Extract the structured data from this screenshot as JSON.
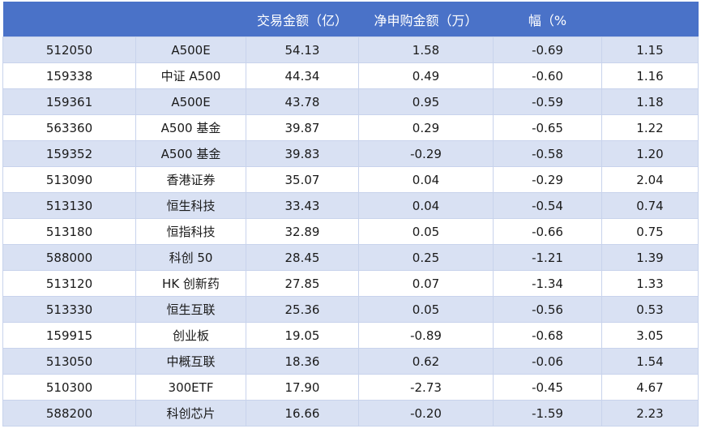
{
  "table": {
    "header": [
      null,
      null,
      "交易金额（亿）",
      "净申购金额（万）",
      "幅（%",
      null
    ],
    "rows": [
      [
        "512050",
        "A500E",
        "54.13",
        "1.58",
        "-0.69",
        "1.15"
      ],
      [
        "159338",
        "中证 A500",
        "44.34",
        "0.49",
        "-0.60",
        "1.16"
      ],
      [
        "159361",
        "A500E",
        "43.78",
        "0.95",
        "-0.59",
        "1.18"
      ],
      [
        "563360",
        "A500 基金",
        "39.87",
        "0.29",
        "-0.65",
        "1.22"
      ],
      [
        "159352",
        "A500 基金",
        "39.83",
        "-0.29",
        "-0.58",
        "1.20"
      ],
      [
        "513090",
        "香港证券",
        "35.07",
        "0.04",
        "-0.29",
        "2.04"
      ],
      [
        "513130",
        "恒生科技",
        "33.43",
        "0.04",
        "-0.54",
        "0.74"
      ],
      [
        "513180",
        "恒指科技",
        "32.89",
        "0.05",
        "-0.66",
        "0.75"
      ],
      [
        "588000",
        "科创 50",
        "28.45",
        "0.25",
        "-1.21",
        "1.39"
      ],
      [
        "513120",
        "HK 创新药",
        "27.85",
        "0.07",
        "-1.34",
        "1.33"
      ],
      [
        "513330",
        "恒生互联",
        "25.36",
        "0.05",
        "-0.56",
        "0.53"
      ],
      [
        "159915",
        "创业板",
        "19.05",
        "-0.89",
        "-0.68",
        "3.05"
      ],
      [
        "513050",
        "中概互联",
        "18.36",
        "0.62",
        "-0.06",
        "1.54"
      ],
      [
        "510300",
        "300ETF",
        "17.90",
        "-2.73",
        "-0.45",
        "4.67"
      ],
      [
        "588200",
        "科创芯片",
        "16.66",
        "-0.20",
        "-1.59",
        "2.23"
      ]
    ]
  }
}
